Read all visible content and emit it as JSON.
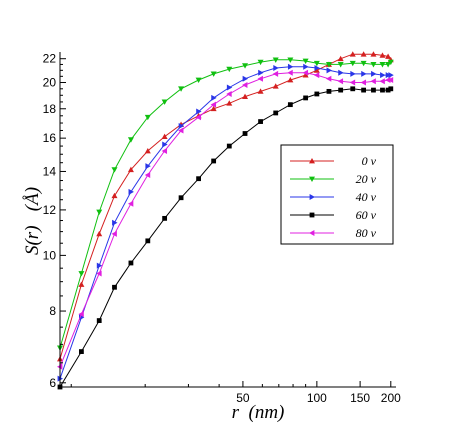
{
  "chart_data": {
    "type": "line",
    "xscale": "log",
    "yscale": "log",
    "xlim": [
      9,
      210
    ],
    "ylim": [
      5.9,
      22.6
    ],
    "xticks": [
      50,
      100,
      150,
      200
    ],
    "xtick_labels": [
      "50",
      "100",
      "150",
      "200"
    ],
    "yticks": [
      6,
      8,
      10,
      12,
      14,
      16,
      18,
      20,
      22
    ],
    "ytick_labels": [
      "6",
      "8",
      "10",
      "12",
      "14",
      "16",
      "18",
      "20",
      "22"
    ],
    "xlabel": "r  (nm)",
    "ylabel": "S(r)   (Å)",
    "legend": "inside, right",
    "grid": false,
    "series": [
      {
        "name": "0  v",
        "color": "#d42020",
        "marker": "triangle-up",
        "x": [
          9,
          11,
          13,
          15,
          17.5,
          20.5,
          24,
          28,
          33,
          38,
          44,
          51,
          59,
          68,
          78,
          90,
          100,
          112,
          125,
          140,
          155,
          170,
          185,
          195,
          200
        ],
        "y": [
          6.6,
          8.9,
          10.9,
          12.7,
          14.1,
          15.2,
          16.1,
          16.9,
          17.5,
          18.0,
          18.4,
          18.9,
          19.3,
          19.7,
          20.2,
          20.6,
          21.0,
          21.5,
          22.0,
          22.4,
          22.4,
          22.4,
          22.3,
          22.2,
          21.9
        ]
      },
      {
        "name": "20  v",
        "color": "#10c010",
        "marker": "triangle-down",
        "x": [
          9,
          11,
          13,
          15,
          17.5,
          20.5,
          24,
          28,
          33,
          38,
          44,
          51,
          59,
          68,
          78,
          90,
          100,
          112,
          125,
          140,
          155,
          170,
          185,
          195,
          200
        ],
        "y": [
          6.9,
          9.3,
          11.9,
          14.1,
          15.9,
          17.4,
          18.5,
          19.5,
          20.2,
          20.7,
          21.1,
          21.4,
          21.7,
          21.9,
          21.9,
          21.8,
          21.6,
          21.5,
          21.5,
          21.6,
          21.6,
          21.5,
          21.5,
          21.5,
          21.7
        ]
      },
      {
        "name": "40  v",
        "color": "#2a36e8",
        "marker": "triangle-right",
        "x": [
          9,
          11,
          13,
          15,
          17.5,
          20.5,
          24,
          28,
          33,
          38,
          44,
          51,
          59,
          68,
          78,
          90,
          100,
          112,
          125,
          140,
          155,
          170,
          185,
          195,
          200
        ],
        "y": [
          6.1,
          7.8,
          9.6,
          11.4,
          12.9,
          14.3,
          15.6,
          16.8,
          17.8,
          18.8,
          19.6,
          20.3,
          20.8,
          21.2,
          21.3,
          21.3,
          21.2,
          21.0,
          20.8,
          20.7,
          20.7,
          20.7,
          20.6,
          20.6,
          20.6
        ]
      },
      {
        "name": "60  v",
        "color": "#000000",
        "marker": "square",
        "x": [
          9,
          11,
          13,
          15,
          17.5,
          20.5,
          24,
          28,
          33,
          38,
          44,
          51,
          59,
          68,
          78,
          90,
          100,
          112,
          125,
          140,
          155,
          170,
          185,
          195,
          200
        ],
        "y": [
          5.9,
          6.8,
          7.7,
          8.8,
          9.7,
          10.6,
          11.6,
          12.6,
          13.6,
          14.6,
          15.5,
          16.3,
          17.1,
          17.7,
          18.3,
          18.8,
          19.1,
          19.3,
          19.4,
          19.5,
          19.4,
          19.4,
          19.4,
          19.4,
          19.5
        ]
      },
      {
        "name": "80  v",
        "color": "#e020e0",
        "marker": "triangle-left",
        "x": [
          9,
          11,
          13,
          15,
          17.5,
          20.5,
          24,
          28,
          33,
          38,
          44,
          51,
          59,
          68,
          78,
          90,
          100,
          112,
          125,
          140,
          155,
          170,
          185,
          195,
          200
        ],
        "y": [
          6.4,
          7.9,
          9.3,
          10.9,
          12.3,
          13.8,
          15.2,
          16.5,
          17.4,
          18.3,
          19.1,
          19.8,
          20.3,
          20.7,
          20.8,
          20.8,
          20.6,
          20.3,
          20.1,
          20.0,
          20.0,
          20.1,
          20.1,
          20.2,
          20.2
        ]
      }
    ]
  }
}
